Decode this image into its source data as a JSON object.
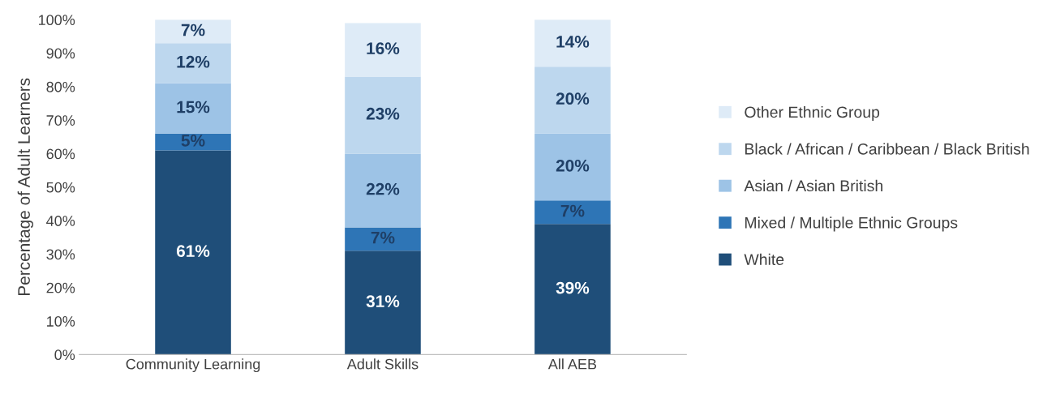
{
  "chart_data": {
    "type": "bar",
    "stacked": true,
    "ylabel": "Percentage of Adult Learners",
    "categories": [
      "Community Learning",
      "Adult Skills",
      "All AEB"
    ],
    "series": [
      {
        "name": "White",
        "color": "#1f4e79",
        "values": [
          61,
          31,
          39
        ]
      },
      {
        "name": "Mixed / Multiple Ethnic Groups",
        "color": "#2e75b6",
        "values": [
          5,
          7,
          7
        ]
      },
      {
        "name": "Asian / Asian British",
        "color": "#9dc3e6",
        "values": [
          15,
          22,
          20
        ]
      },
      {
        "name": "Black / African / Caribbean / Black British",
        "color": "#bdd7ee",
        "values": [
          12,
          23,
          20
        ]
      },
      {
        "name": "Other Ethnic Group",
        "color": "#deebf7",
        "values": [
          7,
          16,
          14
        ]
      }
    ],
    "value_labels": [
      [
        "61%",
        "31%",
        "39%"
      ],
      [
        "5%",
        "7%",
        "7%"
      ],
      [
        "15%",
        "22%",
        "20%"
      ],
      [
        "12%",
        "23%",
        "20%"
      ],
      [
        "7%",
        "16%",
        "14%"
      ]
    ],
    "ylim": [
      0,
      100
    ],
    "yticks": [
      {
        "value": 0,
        "label": "0%"
      },
      {
        "value": 10,
        "label": "10%"
      },
      {
        "value": 20,
        "label": "20%"
      },
      {
        "value": 30,
        "label": "30%"
      },
      {
        "value": 40,
        "label": "40%"
      },
      {
        "value": 50,
        "label": "50%"
      },
      {
        "value": 60,
        "label": "60%"
      },
      {
        "value": 70,
        "label": "70%"
      },
      {
        "value": 80,
        "label": "80%"
      },
      {
        "value": 90,
        "label": "90%"
      },
      {
        "value": 100,
        "label": "100%"
      }
    ],
    "grid": false,
    "legend": "right"
  }
}
